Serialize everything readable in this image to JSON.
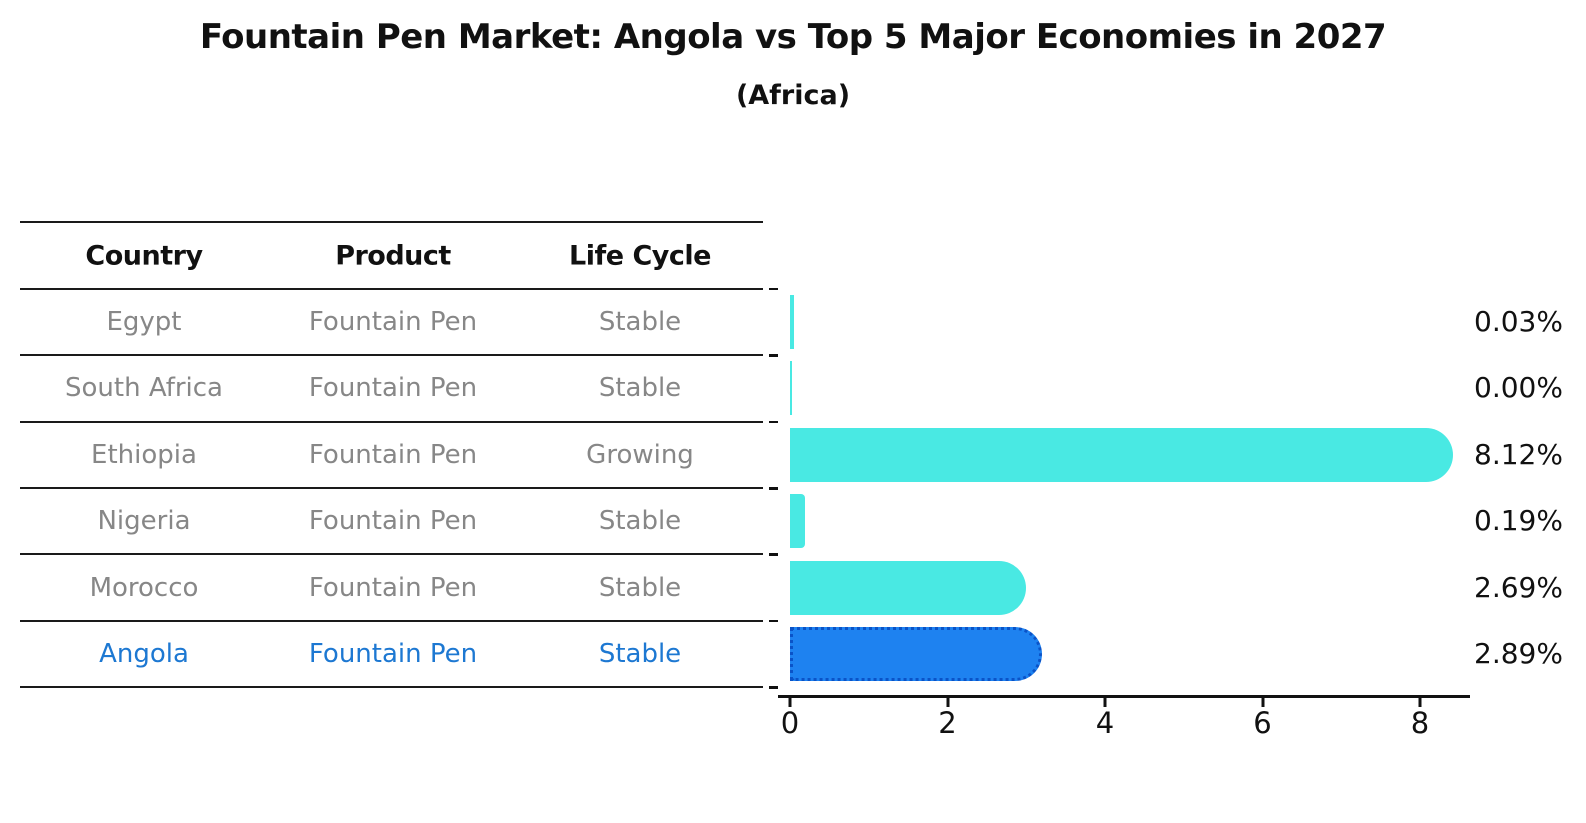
{
  "title": "Fountain Pen Market: Angola vs Top 5 Major Economies in 2027",
  "subtitle": "(Africa)",
  "table": {
    "headers": [
      "Country",
      "Product",
      "Life Cycle"
    ],
    "rows": [
      {
        "country": "Egypt",
        "product": "Fountain Pen",
        "life_cycle": "Stable",
        "highlight": false
      },
      {
        "country": "South Africa",
        "product": "Fountain Pen",
        "life_cycle": "Stable",
        "highlight": false
      },
      {
        "country": "Ethiopia",
        "product": "Fountain Pen",
        "life_cycle": "Growing",
        "highlight": false
      },
      {
        "country": "Nigeria",
        "product": "Fountain Pen",
        "life_cycle": "Stable",
        "highlight": false
      },
      {
        "country": "Morocco",
        "product": "Fountain Pen",
        "life_cycle": "Stable",
        "highlight": false
      },
      {
        "country": "Angola",
        "product": "Fountain Pen",
        "life_cycle": "Stable",
        "highlight": true
      }
    ]
  },
  "chart_data": {
    "type": "bar",
    "orientation": "horizontal",
    "title": "Fountain Pen Market: Angola vs Top 5 Major Economies in 2027",
    "subtitle": "(Africa)",
    "categories": [
      "Egypt",
      "South Africa",
      "Ethiopia",
      "Nigeria",
      "Morocco",
      "Angola"
    ],
    "values": [
      0.03,
      0.0,
      8.12,
      0.19,
      2.69,
      2.89
    ],
    "value_labels": [
      "0.03%",
      "0.00%",
      "8.12%",
      "0.19%",
      "2.69%",
      "2.89%"
    ],
    "unit": "%",
    "x_ticks": [
      0,
      2,
      4,
      6,
      8
    ],
    "xlim": [
      0,
      8.6
    ],
    "grid": false,
    "legend": false,
    "highlight_category": "Angola",
    "colors": {
      "bar": "#49E9E3",
      "highlight_bar": "#1E82F0",
      "highlight_border": "#0A53C8"
    }
  },
  "colors": {
    "header_text": "#111111",
    "row_text": "#878787",
    "highlight_text": "#1D78D2",
    "value_text": "#111111",
    "axis": "#111111",
    "divider": "#1A1A1A"
  }
}
